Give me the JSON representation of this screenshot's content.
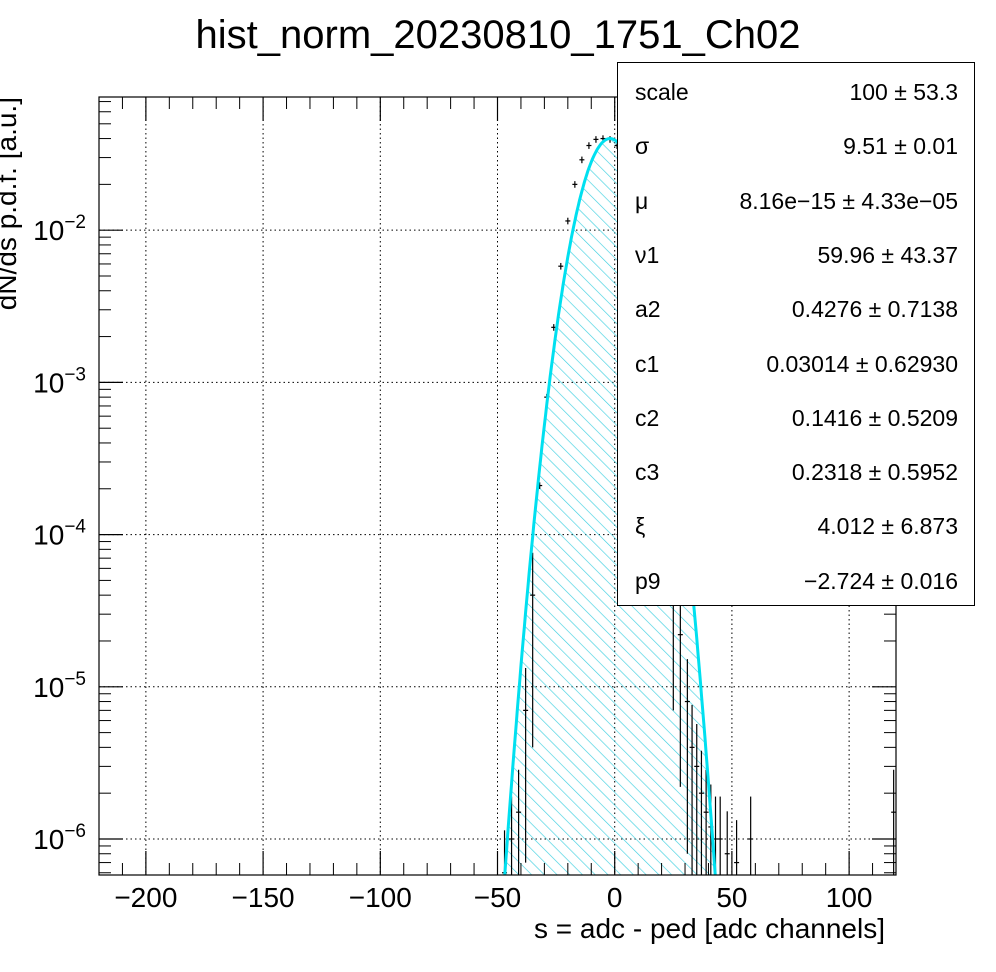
{
  "chart_data": {
    "type": "histogram",
    "title": "hist_norm_20230810_1751_Ch02",
    "xlabel": "s = adc - ped [adc channels]",
    "ylabel": "dN/ds p.d.f. [a.u.]",
    "xlim": [
      -220,
      120
    ],
    "ylim": [
      5.8e-07,
      0.075
    ],
    "y_scale": "log",
    "grid": true,
    "x_ticks": [
      {
        "value": -200,
        "label": "−200"
      },
      {
        "value": -150,
        "label": "−150"
      },
      {
        "value": -100,
        "label": "−100"
      },
      {
        "value": -50,
        "label": "−50"
      },
      {
        "value": 0,
        "label": "0"
      },
      {
        "value": 50,
        "label": "50"
      },
      {
        "value": 100,
        "label": "100"
      }
    ],
    "y_ticks": [
      {
        "value": 1e-06,
        "base": "10",
        "exp": "−6"
      },
      {
        "value": 1e-05,
        "base": "10",
        "exp": "−5"
      },
      {
        "value": 0.0001,
        "base": "10",
        "exp": "−4"
      },
      {
        "value": 0.001,
        "base": "10",
        "exp": "−3"
      },
      {
        "value": 0.01,
        "base": "10",
        "exp": "−2"
      }
    ],
    "fit_color": "#00e0f0",
    "hatch_color": "#40d0e0",
    "series": [
      {
        "name": "data",
        "x": [
          -47,
          -44,
          -41,
          -38,
          -35,
          -32,
          -29,
          -26,
          -23,
          -20,
          -17,
          -14,
          -11,
          -8,
          -5,
          -2,
          1,
          4,
          7,
          10,
          13,
          16,
          19,
          22,
          25,
          28,
          31,
          33,
          35,
          37,
          39,
          41,
          43,
          45,
          48,
          52,
          58,
          119
        ],
        "y": [
          6e-07,
          1e-06,
          1.5e-06,
          7e-06,
          4e-05,
          0.00021,
          0.0008,
          0.0023,
          0.0058,
          0.0115,
          0.02,
          0.029,
          0.036,
          0.0395,
          0.04,
          0.0395,
          0.036,
          0.029,
          0.02,
          0.0115,
          0.0058,
          0.0023,
          0.0008,
          0.00023,
          7e-05,
          2.2e-05,
          8e-06,
          4e-06,
          3e-06,
          2e-06,
          1.5e-06,
          1.2e-06,
          1e-06,
          1e-06,
          8e-07,
          7e-07,
          1e-06,
          1.5e-06
        ]
      }
    ],
    "fit_params": [
      {
        "name": "scale",
        "value": "100 ± 53.3"
      },
      {
        "name": "σ",
        "value": "9.51 ± 0.01"
      },
      {
        "name": "μ",
        "value": "8.16e−15 ± 4.33e−05"
      },
      {
        "name": "ν1",
        "value": "59.96 ± 43.37"
      },
      {
        "name": "a2",
        "value": "0.4276 ± 0.7138"
      },
      {
        "name": "c1",
        "value": "0.03014 ± 0.62930"
      },
      {
        "name": "c2",
        "value": "0.1416 ± 0.5209"
      },
      {
        "name": "c3",
        "value": "0.2318 ± 0.5952"
      },
      {
        "name": "ξ",
        "value": "4.012 ± 6.873"
      },
      {
        "name": "p9",
        "value": "−2.724 ± 0.016"
      }
    ]
  }
}
